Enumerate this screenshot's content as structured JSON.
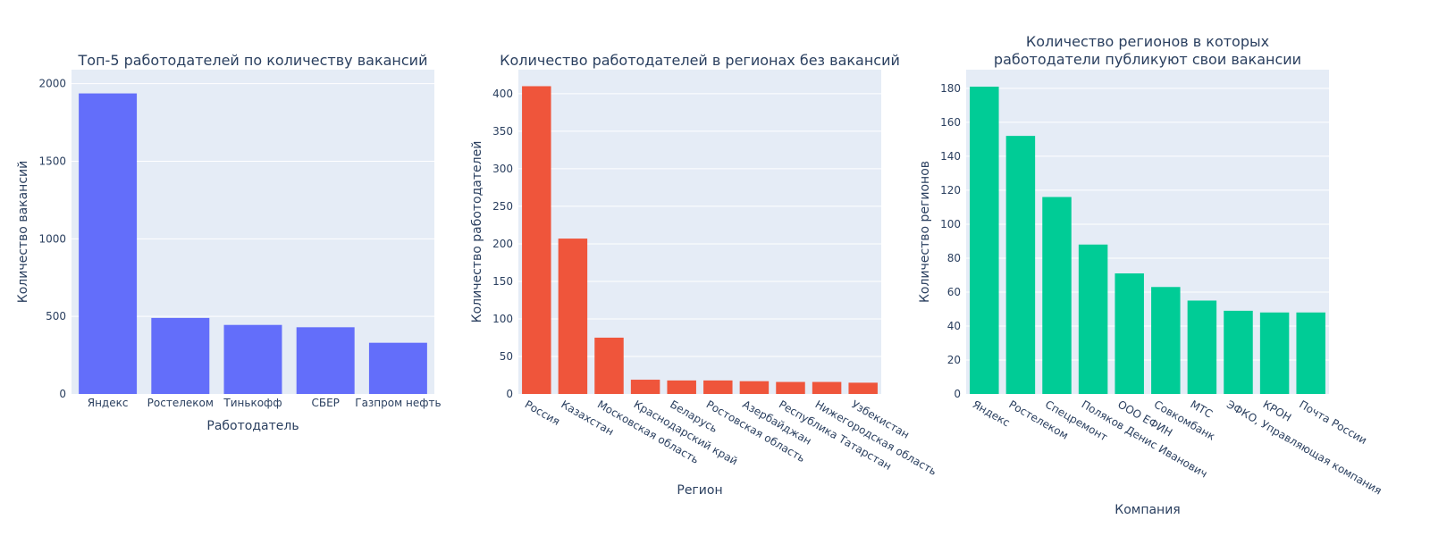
{
  "chart_data": [
    {
      "type": "bar",
      "title": [
        "Топ-5 работодателей по количеству вакансий"
      ],
      "xlabel": "Работодатель",
      "ylabel": "Количество вакансий",
      "categories": [
        "Яндекс",
        "Ростелеком",
        "Тинькофф",
        "СБЕР",
        "Газпром нефть"
      ],
      "values": [
        1937,
        490,
        445,
        430,
        330
      ],
      "ylim": [
        0,
        2090
      ],
      "yticks": [
        0,
        500,
        1000,
        1500,
        2000
      ],
      "tick_labels_rotated": false,
      "color": "#636efa",
      "grid": true
    },
    {
      "type": "bar",
      "title": [
        "Количество работодателей в регионах без вакансий"
      ],
      "xlabel": "Регион",
      "ylabel": "Количество работодателей",
      "categories": [
        "Россия",
        "Казахстан",
        "Московская область",
        "Краснодарский край",
        "Беларусь",
        "Ростовская область",
        "Азербайджан",
        "Республика Татарстан",
        "Нижегородская область",
        "Узбекистан"
      ],
      "values": [
        410,
        207,
        75,
        19,
        18,
        18,
        17,
        16,
        16,
        15
      ],
      "ylim": [
        0,
        432
      ],
      "yticks": [
        0,
        50,
        100,
        150,
        200,
        250,
        300,
        350,
        400
      ],
      "tick_labels_rotated": true,
      "color": "#ef553b",
      "grid": true
    },
    {
      "type": "bar",
      "title": [
        "Количество регионов в которых",
        "работодатели публикуют свои вакансии"
      ],
      "xlabel": "Компания",
      "ylabel": "Количество регионов",
      "categories": [
        "Яндекс",
        "Ростелеком",
        "Спецремонт",
        "Поляков Денис Иванович",
        "ООО ЕФИН",
        "Совкомбанк",
        "МТС",
        "ЭФКО, Управляющая компания",
        "КРОН",
        "Почта России"
      ],
      "values": [
        181,
        152,
        116,
        88,
        71,
        63,
        55,
        49,
        48,
        48
      ],
      "ylim": [
        0,
        191
      ],
      "yticks": [
        0,
        20,
        40,
        60,
        80,
        100,
        120,
        140,
        160,
        180
      ],
      "tick_labels_rotated": true,
      "color": "#00cc96",
      "grid": true
    }
  ]
}
